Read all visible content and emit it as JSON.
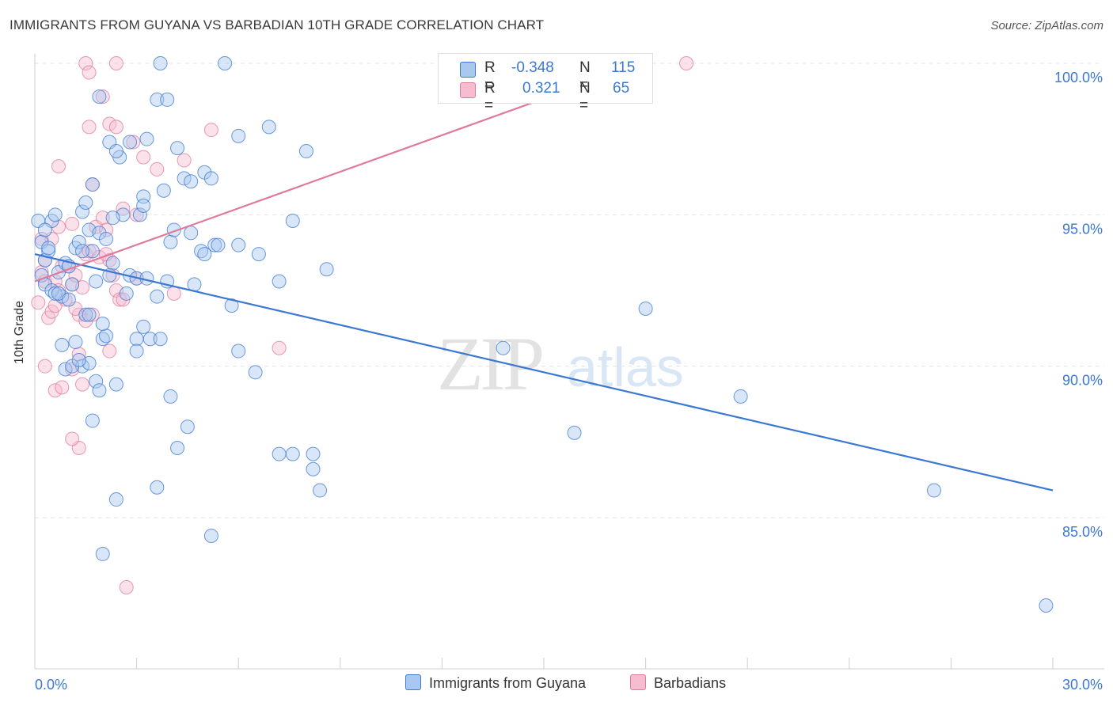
{
  "title": "IMMIGRANTS FROM GUYANA VS BARBADIAN 10TH GRADE CORRELATION CHART",
  "source": "Source: ZipAtlas.com",
  "watermark": {
    "zip": "ZIP",
    "atlas": "atlas"
  },
  "legend_top": {
    "r_label": "R =",
    "n_label": "N =",
    "series1": {
      "r": "-0.348",
      "n": "115"
    },
    "series2": {
      "r": "0.321",
      "n": "65"
    }
  },
  "chart_data": {
    "type": "scatter",
    "title": "IMMIGRANTS FROM GUYANA VS BARBADIAN 10TH GRADE CORRELATION CHART",
    "xlabel": "",
    "ylabel": "10th Grade",
    "xlim": [
      0,
      30
    ],
    "ylim": [
      80.5,
      100.5
    ],
    "x_tick_labels": [
      "0.0%",
      "30.0%"
    ],
    "y_ticks": [
      85,
      90,
      95,
      100
    ],
    "y_tick_labels": [
      "85.0%",
      "90.0%",
      "95.0%",
      "100.0%"
    ],
    "grid": true,
    "legend_position": "bottom-center",
    "colors": {
      "blue": "#3a78d4",
      "blue_fill": "#a9c8f0",
      "pink": "#e07a9c",
      "pink_fill": "#f6bcd0"
    },
    "series": [
      {
        "name": "Immigrants from Guyana",
        "r": -0.348,
        "n": 115,
        "trend": {
          "x": [
            0,
            30
          ],
          "y": [
            93.7,
            85.9
          ]
        },
        "points": [
          [
            0.1,
            94.8
          ],
          [
            0.2,
            94.1
          ],
          [
            0.3,
            93.5
          ],
          [
            0.4,
            93.8
          ],
          [
            0.5,
            94.8
          ],
          [
            0.6,
            95.0
          ],
          [
            0.7,
            93.1
          ],
          [
            0.8,
            92.3
          ],
          [
            0.2,
            93.0
          ],
          [
            0.3,
            92.7
          ],
          [
            0.5,
            92.5
          ],
          [
            0.9,
            93.4
          ],
          [
            1.1,
            92.7
          ],
          [
            1.2,
            93.9
          ],
          [
            1.3,
            94.1
          ],
          [
            1.4,
            95.1
          ],
          [
            1.5,
            95.4
          ],
          [
            1.6,
            94.5
          ],
          [
            1.7,
            93.8
          ],
          [
            1.9,
            94.4
          ],
          [
            2.1,
            94.2
          ],
          [
            2.3,
            93.4
          ],
          [
            2.2,
            93.0
          ],
          [
            1.8,
            92.8
          ],
          [
            1.0,
            93.3
          ],
          [
            1.2,
            90.8
          ],
          [
            1.4,
            90.0
          ],
          [
            1.6,
            90.1
          ],
          [
            1.8,
            89.5
          ],
          [
            1.9,
            89.2
          ],
          [
            2.0,
            90.9
          ],
          [
            2.1,
            91.0
          ],
          [
            2.4,
            89.4
          ],
          [
            0.8,
            90.7
          ],
          [
            0.9,
            89.9
          ],
          [
            1.1,
            90.0
          ],
          [
            1.3,
            90.2
          ],
          [
            1.7,
            88.2
          ],
          [
            1.5,
            91.7
          ],
          [
            2.7,
            92.4
          ],
          [
            2.8,
            93.0
          ],
          [
            3.0,
            92.9
          ],
          [
            3.3,
            92.9
          ],
          [
            3.2,
            91.3
          ],
          [
            3.4,
            90.9
          ],
          [
            3.6,
            92.3
          ],
          [
            3.9,
            92.8
          ],
          [
            4.0,
            94.1
          ],
          [
            4.1,
            94.5
          ],
          [
            4.6,
            94.4
          ],
          [
            4.9,
            93.8
          ],
          [
            5.3,
            94.0
          ],
          [
            5.4,
            94.0
          ],
          [
            5.0,
            93.7
          ],
          [
            4.7,
            92.7
          ],
          [
            5.8,
            92.0
          ],
          [
            6.0,
            94.0
          ],
          [
            6.6,
            93.7
          ],
          [
            7.2,
            92.8
          ],
          [
            7.6,
            94.8
          ],
          [
            8.6,
            93.2
          ],
          [
            6.0,
            90.5
          ],
          [
            6.5,
            89.8
          ],
          [
            3.7,
            90.9
          ],
          [
            3.0,
            90.9
          ],
          [
            3.0,
            90.5
          ],
          [
            4.0,
            89.0
          ],
          [
            4.5,
            88.0
          ],
          [
            4.2,
            87.3
          ],
          [
            3.6,
            86.0
          ],
          [
            2.4,
            85.6
          ],
          [
            2.0,
            83.8
          ],
          [
            5.2,
            84.4
          ],
          [
            7.2,
            87.1
          ],
          [
            7.6,
            87.1
          ],
          [
            8.2,
            87.1
          ],
          [
            8.2,
            86.6
          ],
          [
            8.4,
            85.9
          ],
          [
            13.8,
            90.6
          ],
          [
            15.9,
            87.8
          ],
          [
            18.0,
            91.9
          ],
          [
            20.8,
            89.0
          ],
          [
            26.5,
            85.9
          ],
          [
            29.8,
            82.1
          ],
          [
            1.9,
            98.9
          ],
          [
            2.5,
            96.9
          ],
          [
            2.2,
            97.4
          ],
          [
            2.8,
            97.4
          ],
          [
            3.6,
            98.8
          ],
          [
            3.9,
            98.8
          ],
          [
            3.3,
            97.5
          ],
          [
            4.2,
            97.2
          ],
          [
            4.4,
            96.2
          ],
          [
            4.6,
            96.1
          ],
          [
            5.0,
            96.4
          ],
          [
            5.2,
            96.2
          ],
          [
            6.0,
            97.6
          ],
          [
            6.9,
            97.9
          ],
          [
            8.0,
            97.1
          ],
          [
            3.7,
            100.0
          ],
          [
            5.6,
            100.0
          ],
          [
            2.4,
            97.1
          ],
          [
            3.1,
            95.0
          ],
          [
            2.6,
            95.0
          ],
          [
            3.2,
            95.6
          ],
          [
            3.2,
            95.3
          ],
          [
            3.8,
            95.8
          ],
          [
            1.7,
            96.0
          ],
          [
            2.3,
            94.9
          ],
          [
            0.3,
            94.5
          ],
          [
            0.4,
            93.9
          ],
          [
            0.6,
            92.4
          ],
          [
            0.7,
            92.4
          ],
          [
            1.0,
            92.2
          ],
          [
            1.4,
            93.8
          ],
          [
            1.6,
            91.7
          ],
          [
            2.0,
            91.4
          ]
        ]
      },
      {
        "name": "Barbadians",
        "r": 0.321,
        "n": 65,
        "trend": {
          "x": [
            0,
            17.9
          ],
          "y": [
            92.8,
            100.0
          ]
        },
        "points": [
          [
            0.1,
            92.1
          ],
          [
            0.2,
            93.1
          ],
          [
            0.2,
            94.2
          ],
          [
            0.3,
            92.8
          ],
          [
            0.3,
            93.5
          ],
          [
            0.4,
            91.6
          ],
          [
            0.5,
            91.8
          ],
          [
            0.6,
            92.0
          ],
          [
            0.6,
            92.8
          ],
          [
            0.7,
            92.5
          ],
          [
            0.8,
            93.3
          ],
          [
            0.9,
            92.2
          ],
          [
            1.0,
            93.3
          ],
          [
            1.1,
            92.7
          ],
          [
            1.2,
            93.0
          ],
          [
            1.3,
            91.7
          ],
          [
            1.4,
            92.6
          ],
          [
            1.5,
            91.5
          ],
          [
            1.5,
            93.7
          ],
          [
            1.6,
            93.8
          ],
          [
            1.7,
            91.7
          ],
          [
            1.8,
            94.6
          ],
          [
            1.9,
            93.6
          ],
          [
            2.0,
            94.9
          ],
          [
            2.1,
            94.5
          ],
          [
            2.2,
            93.5
          ],
          [
            2.3,
            93.0
          ],
          [
            2.4,
            92.5
          ],
          [
            2.5,
            92.2
          ],
          [
            2.6,
            92.2
          ],
          [
            0.3,
            90.0
          ],
          [
            0.6,
            89.2
          ],
          [
            0.8,
            89.3
          ],
          [
            1.1,
            89.9
          ],
          [
            1.3,
            90.4
          ],
          [
            1.4,
            89.4
          ],
          [
            1.3,
            87.3
          ],
          [
            1.1,
            87.6
          ],
          [
            2.2,
            90.5
          ],
          [
            2.7,
            82.7
          ],
          [
            0.7,
            96.6
          ],
          [
            1.6,
            97.9
          ],
          [
            1.7,
            96.0
          ],
          [
            2.2,
            98.0
          ],
          [
            2.0,
            98.9
          ],
          [
            2.4,
            97.9
          ],
          [
            2.9,
            97.4
          ],
          [
            3.2,
            96.9
          ],
          [
            3.6,
            96.5
          ],
          [
            4.4,
            96.8
          ],
          [
            5.2,
            97.8
          ],
          [
            1.5,
            100.0
          ],
          [
            1.6,
            99.7
          ],
          [
            2.4,
            100.0
          ],
          [
            19.2,
            100.0
          ],
          [
            2.6,
            95.2
          ],
          [
            3.0,
            95.0
          ],
          [
            2.1,
            93.7
          ],
          [
            0.5,
            94.2
          ],
          [
            0.7,
            94.6
          ],
          [
            1.1,
            94.7
          ],
          [
            3.0,
            92.9
          ],
          [
            4.1,
            92.4
          ],
          [
            7.2,
            90.6
          ],
          [
            1.2,
            91.9
          ]
        ]
      }
    ]
  }
}
